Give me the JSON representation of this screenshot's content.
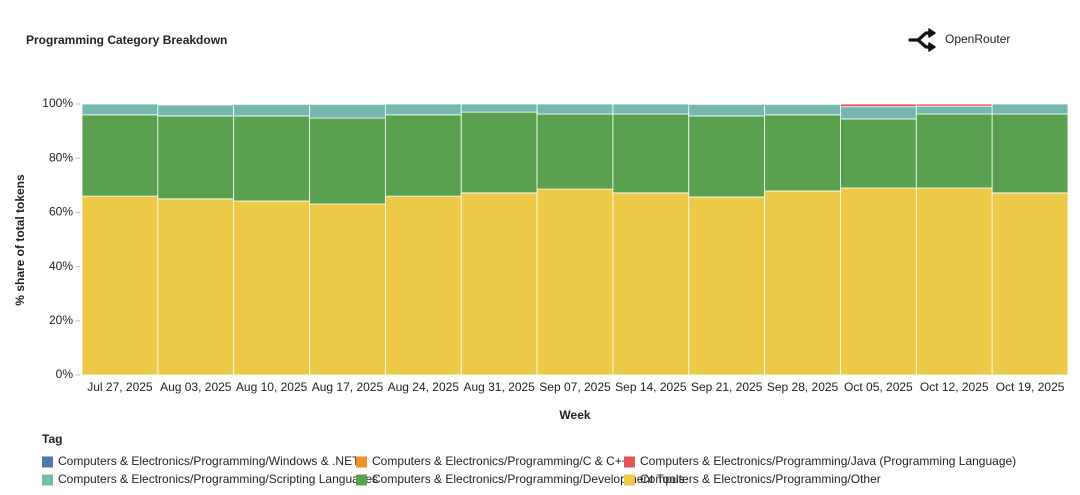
{
  "brand": "OpenRouter",
  "chart_data": {
    "type": "stacked_bar_percent",
    "title": "Programming Category Breakdown",
    "y_label": "% share of total tokens",
    "x_label": "Week",
    "legend_title": "Tag",
    "categories": [
      "Jul 27, 2025",
      "Aug 03, 2025",
      "Aug 10, 2025",
      "Aug 17, 2025",
      "Aug 24, 2025",
      "Aug 31, 2025",
      "Sep 07, 2025",
      "Sep 14, 2025",
      "Sep 21, 2025",
      "Sep 28, 2025",
      "Oct 05, 2025",
      "Oct 12, 2025",
      "Oct 19, 2025"
    ],
    "ylim": [
      0,
      100
    ],
    "yticks": [
      {
        "value": 0,
        "label": "0%"
      },
      {
        "value": 20,
        "label": "20%"
      },
      {
        "value": 40,
        "label": "40%"
      },
      {
        "value": 60,
        "label": "60%"
      },
      {
        "value": 80,
        "label": "80%"
      },
      {
        "value": 100,
        "label": "100%"
      }
    ],
    "grid": false,
    "series": [
      {
        "name": "Computers & Electronics/Programming/Windows & .NET",
        "color": "#4e79a7",
        "values": [
          0,
          0,
          0,
          0,
          0,
          0,
          0,
          0,
          0,
          0,
          0,
          0,
          0
        ]
      },
      {
        "name": "Computers & Electronics/Programming/C & C++",
        "color": "#f28e2b",
        "values": [
          0,
          0.1,
          0,
          0,
          0,
          0,
          0,
          0,
          0,
          0,
          0,
          0,
          0
        ]
      },
      {
        "name": "Computers & Electronics/Programming/Java (Programming Language)",
        "color": "#e15759",
        "values": [
          0,
          0.2,
          0.1,
          0.1,
          0,
          0,
          0,
          0,
          0.1,
          0.1,
          1.0,
          0.8,
          0
        ]
      },
      {
        "name": "Computers & Electronics/Programming/Scripting Languages",
        "color": "#76b7b2",
        "values": [
          4.0,
          4.1,
          4.3,
          5.1,
          4.0,
          3.0,
          3.7,
          3.7,
          4.3,
          3.9,
          4.5,
          2.9,
          3.7
        ]
      },
      {
        "name": "Computers & Electronics/Programming/Development Tools",
        "color": "#59a14f",
        "values": [
          30.0,
          30.6,
          31.4,
          31.7,
          30.0,
          29.8,
          27.7,
          29.1,
          29.9,
          28.1,
          25.5,
          27.3,
          29.1
        ]
      },
      {
        "name": "Computers & Electronics/Programming/Other",
        "color": "#edc948",
        "values": [
          66.0,
          65.0,
          64.2,
          63.1,
          66.0,
          67.2,
          68.6,
          67.2,
          65.7,
          67.9,
          69.0,
          69.0,
          67.2
        ]
      }
    ]
  }
}
